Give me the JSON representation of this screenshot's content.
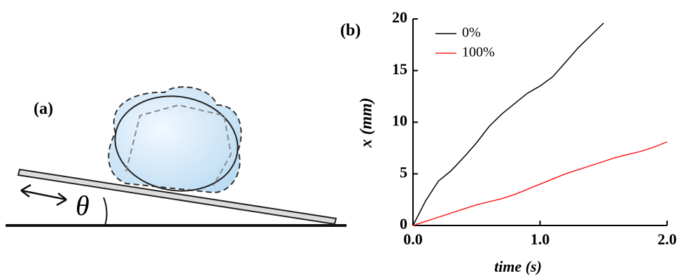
{
  "panel_a": {
    "label": "(a)",
    "angle_label": "θ"
  },
  "chart_data": {
    "type": "line",
    "panel_label": "(b)",
    "x_label": "time (s)",
    "y_label": "x (mm)",
    "x": [
      0,
      0.1,
      0.2,
      0.3,
      0.4,
      0.5,
      0.6,
      0.7,
      0.8,
      0.9,
      1.0,
      1.1,
      1.2,
      1.3,
      1.4,
      1.5,
      1.6,
      1.7,
      1.8,
      1.9,
      2.0
    ],
    "series": [
      {
        "name": "0%",
        "color": "#000000",
        "values": [
          0,
          2.4,
          4.3,
          5.3,
          6.6,
          8.0,
          9.6,
          10.8,
          11.8,
          12.8,
          13.5,
          14.4,
          15.8,
          17.2,
          18.4,
          19.6,
          null,
          null,
          null,
          null,
          null
        ]
      },
      {
        "name": "100%",
        "color": "#ff2020",
        "values": [
          0,
          0.4,
          0.8,
          1.2,
          1.6,
          2.0,
          2.3,
          2.6,
          3.0,
          3.5,
          4.0,
          4.5,
          5.0,
          5.4,
          5.8,
          6.2,
          6.6,
          6.9,
          7.2,
          7.6,
          8.1
        ]
      }
    ],
    "xlim": [
      0,
      2.0
    ],
    "xticks": [
      {
        "value": 0,
        "label": "0.0"
      },
      {
        "value": 1,
        "label": "1.0"
      },
      {
        "value": 2,
        "label": "2.0"
      }
    ],
    "ylim": [
      0,
      20
    ],
    "yticks": [
      0,
      5,
      10,
      15,
      20
    ],
    "legend": "upper-left"
  }
}
